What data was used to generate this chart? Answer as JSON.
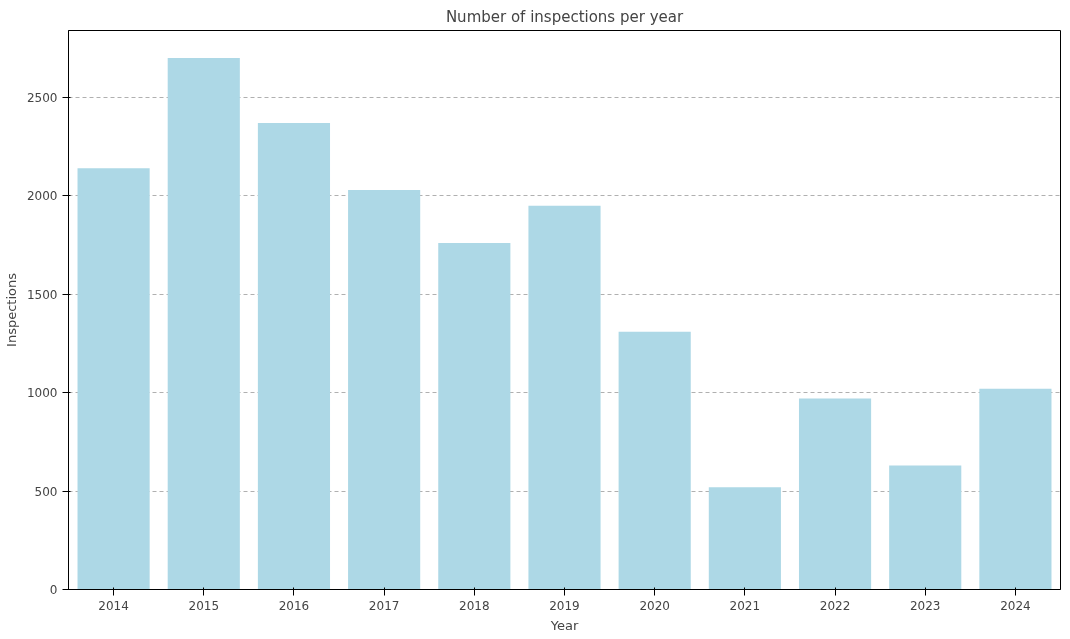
{
  "chart_data": {
    "type": "bar",
    "title": "Number of inspections per year",
    "xlabel": "Year",
    "ylabel": "Inspections",
    "categories": [
      "2014",
      "2015",
      "2016",
      "2017",
      "2018",
      "2019",
      "2020",
      "2021",
      "2022",
      "2023",
      "2024"
    ],
    "values": [
      2140,
      2700,
      2370,
      2030,
      1760,
      1950,
      1310,
      520,
      970,
      630,
      1020
    ],
    "color": "#add8e6",
    "ylim": [
      0,
      2840
    ],
    "yticks": [
      0,
      500,
      1000,
      1500,
      2000,
      2500
    ],
    "grid": "y"
  }
}
